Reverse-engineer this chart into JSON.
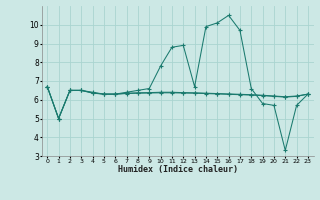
{
  "xlabel": "Humidex (Indice chaleur)",
  "bg_color": "#cce8e5",
  "grid_color": "#aad4d0",
  "line_color": "#1a7a6e",
  "xlim": [
    -0.5,
    23.5
  ],
  "ylim": [
    3,
    11
  ],
  "yticks": [
    3,
    4,
    5,
    6,
    7,
    8,
    9,
    10
  ],
  "xticks": [
    0,
    1,
    2,
    3,
    4,
    5,
    6,
    7,
    8,
    9,
    10,
    11,
    12,
    13,
    14,
    15,
    16,
    17,
    18,
    19,
    20,
    21,
    22,
    23
  ],
  "series_main": [
    6.7,
    5.0,
    6.5,
    6.5,
    6.4,
    6.3,
    6.3,
    6.4,
    6.5,
    6.6,
    7.8,
    8.8,
    8.9,
    6.7,
    9.9,
    10.1,
    10.5,
    9.7,
    6.6,
    5.8,
    5.7,
    3.3,
    5.7,
    6.3
  ],
  "series_flat1": [
    6.7,
    5.0,
    6.5,
    6.5,
    6.35,
    6.3,
    6.3,
    6.33,
    6.35,
    6.36,
    6.37,
    6.37,
    6.36,
    6.35,
    6.33,
    6.31,
    6.29,
    6.27,
    6.25,
    6.22,
    6.18,
    6.14,
    6.18,
    6.3
  ],
  "series_flat2": [
    6.7,
    5.0,
    6.5,
    6.5,
    6.37,
    6.3,
    6.3,
    6.35,
    6.37,
    6.38,
    6.4,
    6.4,
    6.38,
    6.37,
    6.35,
    6.33,
    6.31,
    6.29,
    6.27,
    6.24,
    6.2,
    6.16,
    6.2,
    6.3
  ]
}
